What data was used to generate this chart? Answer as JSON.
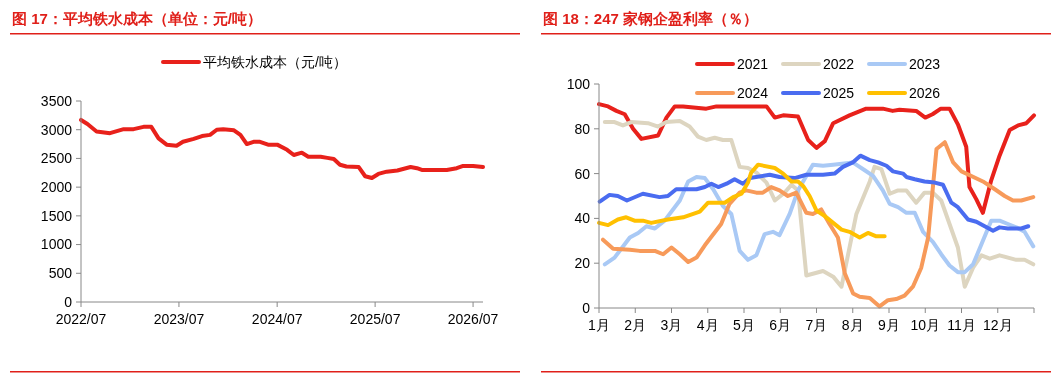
{
  "chart_data": [
    {
      "type": "line",
      "title": "图 17：平均铁水成本（单位：元/吨）",
      "legend": "top",
      "grid": false,
      "marker": "none",
      "line_style": "solid",
      "xlim": [
        "2022-07-01",
        "2026-08-07"
      ],
      "xticks": [
        {
          "value": "2022-07",
          "label": "2022/07"
        },
        {
          "value": "2023-07",
          "label": "2023/07"
        },
        {
          "value": "2024-07",
          "label": "2024/07"
        },
        {
          "value": "2025-07",
          "label": "2025/07"
        },
        {
          "value": "2026-07",
          "label": "2026/07"
        }
      ],
      "ylim": [
        0,
        3500
      ],
      "yticks": [
        0,
        500,
        1000,
        1500,
        2000,
        2500,
        3000,
        3500
      ],
      "series": [
        {
          "name": "平均铁水成本（元/吨）",
          "color": "#e8211b",
          "x": [
            "2022-07-01",
            "2022-07-25",
            "2022-08-28",
            "2022-10-17",
            "2022-12-07",
            "2023-01-13",
            "2023-02-19",
            "2023-03-20",
            "2023-04-16",
            "2023-05-16",
            "2023-06-22",
            "2023-07-16",
            "2023-08-25",
            "2023-09-25",
            "2023-10-25",
            "2023-11-19",
            "2023-12-13",
            "2024-01-22",
            "2024-02-15",
            "2024-03-10",
            "2024-04-04",
            "2024-04-28",
            "2024-05-28",
            "2024-07-01",
            "2024-08-07",
            "2024-09-01",
            "2024-10-01",
            "2024-10-25",
            "2024-12-10",
            "2025-01-04",
            "2025-01-28",
            "2025-02-20",
            "2025-03-16",
            "2025-05-01",
            "2025-05-25",
            "2025-06-19",
            "2025-07-13",
            "2025-08-13",
            "2025-09-22",
            "2025-11-10",
            "2025-12-04",
            "2025-12-22",
            "2026-02-04",
            "2026-03-25",
            "2026-05-01",
            "2026-05-25",
            "2026-07-01",
            "2026-08-07"
          ],
          "values": [
            3170,
            3100,
            2970,
            2940,
            3010,
            3010,
            3050,
            3050,
            2850,
            2740,
            2720,
            2790,
            2840,
            2890,
            2910,
            3000,
            3010,
            2990,
            2910,
            2750,
            2790,
            2790,
            2740,
            2740,
            2650,
            2560,
            2600,
            2530,
            2530,
            2510,
            2490,
            2390,
            2360,
            2350,
            2190,
            2160,
            2230,
            2270,
            2290,
            2350,
            2330,
            2300,
            2300,
            2300,
            2330,
            2370,
            2370,
            2350
          ]
        }
      ]
    },
    {
      "type": "line",
      "title": "图 18：247 家钢企盈利率（％）",
      "legend": "top",
      "grid": false,
      "marker": "none",
      "line_style": "solid",
      "xlim": [
        1,
        13
      ],
      "xticks": [
        {
          "value": 1,
          "label": "1月"
        },
        {
          "value": 2,
          "label": "2月"
        },
        {
          "value": 3,
          "label": "3月"
        },
        {
          "value": 4,
          "label": "4月"
        },
        {
          "value": 5,
          "label": "5月"
        },
        {
          "value": 6,
          "label": "6月"
        },
        {
          "value": 7,
          "label": "7月"
        },
        {
          "value": 8,
          "label": "8月"
        },
        {
          "value": 9,
          "label": "9月"
        },
        {
          "value": 10,
          "label": "10月"
        },
        {
          "value": 11,
          "label": "11月"
        },
        {
          "value": 12,
          "label": "12月"
        },
        {
          "value": 13,
          "label": null
        }
      ],
      "ylim": [
        0,
        100
      ],
      "yticks": [
        0,
        20,
        40,
        60,
        80,
        100
      ],
      "series": [
        {
          "name": "2021",
          "color": "#e8211b",
          "x": [
            1,
            1.25,
            1.48,
            1.71,
            1.94,
            2.17,
            2.63,
            2.86,
            3.09,
            3.32,
            3.96,
            4.24,
            4.88,
            5.62,
            5.85,
            6.08,
            6.49,
            6.77,
            7.0,
            7.23,
            7.46,
            7.91,
            8.37,
            8.83,
            9.1,
            9.29,
            9.75,
            10.0,
            10.2,
            10.43,
            10.67,
            10.9,
            11.13,
            11.22,
            11.41,
            11.59,
            11.82,
            12.05,
            12.33,
            12.56,
            12.79,
            13.0
          ],
          "values": [
            91,
            90,
            88,
            86.5,
            80,
            75.5,
            77,
            85,
            90,
            90,
            89,
            90,
            90,
            90,
            85,
            86,
            85.5,
            75,
            71.5,
            74.5,
            82.5,
            86,
            89,
            89,
            88,
            88.5,
            88,
            85,
            86.5,
            89,
            89,
            82,
            72,
            54,
            48.5,
            42.5,
            57,
            68,
            79.5,
            81.5,
            82.5,
            86
          ]
        },
        {
          "name": "2022",
          "color": "#ddd5c0",
          "x": [
            1.16,
            1.43,
            1.66,
            1.89,
            2.35,
            2.63,
            2.86,
            3.23,
            3.5,
            3.73,
            3.96,
            4.19,
            4.42,
            4.65,
            4.88,
            5.11,
            5.34,
            5.62,
            5.85,
            6.12,
            6.31,
            6.49,
            6.72,
            6.95,
            7.18,
            7.46,
            7.69,
            8.1,
            8.47,
            8.6,
            8.79,
            9.02,
            9.25,
            9.48,
            9.75,
            9.98,
            10.21,
            10.44,
            10.9,
            11.09,
            11.32,
            11.55,
            11.78,
            12.05,
            12.51,
            12.74,
            12.98
          ],
          "values": [
            83,
            83,
            81.5,
            83,
            82.5,
            81,
            83,
            83.5,
            81,
            76.5,
            75,
            76,
            75,
            75,
            63,
            62.5,
            60.5,
            56,
            48,
            51.5,
            55,
            52.5,
            14.5,
            15.5,
            16.5,
            14,
            9.5,
            42,
            56.5,
            63,
            62,
            51,
            52.5,
            52.5,
            47,
            51.5,
            51.5,
            48,
            27,
            9.5,
            18,
            23.5,
            22,
            23.5,
            21.5,
            21.5,
            19.5
          ]
        },
        {
          "name": "2023",
          "color": "#a9c9f5",
          "x": [
            1.16,
            1.43,
            1.85,
            2.08,
            2.31,
            2.54,
            2.81,
            3.23,
            3.46,
            3.69,
            3.92,
            4.15,
            4.42,
            4.65,
            4.88,
            5.11,
            5.34,
            5.57,
            5.8,
            5.98,
            6.26,
            6.49,
            6.63,
            6.9,
            7.18,
            7.46,
            8.0,
            8.33,
            8.56,
            8.83,
            9.02,
            9.25,
            9.48,
            9.71,
            9.94,
            10.21,
            10.44,
            10.67,
            10.9,
            11.09,
            11.32,
            11.59,
            11.82,
            12.05,
            12.28,
            12.51,
            12.74,
            12.98
          ],
          "values": [
            19.5,
            22.5,
            31.5,
            33.5,
            36.5,
            35.5,
            39,
            48,
            56.5,
            58.5,
            58,
            53,
            45.5,
            42,
            25.5,
            21.5,
            23.5,
            33,
            34,
            32.5,
            42,
            52.5,
            56.5,
            64,
            63.5,
            64,
            65,
            61.5,
            59,
            52.5,
            46.5,
            45,
            42.5,
            42.5,
            34,
            29.5,
            24,
            19,
            16,
            16,
            19.5,
            30,
            39,
            39,
            37.5,
            36,
            34,
            27.5
          ]
        },
        {
          "name": "2024",
          "color": "#f79a5a",
          "x": [
            1.11,
            1.39,
            1.85,
            2.12,
            2.54,
            2.77,
            3.0,
            3.23,
            3.46,
            3.69,
            3.92,
            4.37,
            4.6,
            4.88,
            5.06,
            5.34,
            5.52,
            5.75,
            5.98,
            6.21,
            6.44,
            6.72,
            6.9,
            7.13,
            7.36,
            7.59,
            7.78,
            8.01,
            8.19,
            8.47,
            8.74,
            8.97,
            9.2,
            9.43,
            9.66,
            9.89,
            10.08,
            10.31,
            10.54,
            10.77,
            11.0,
            11.46,
            11.59,
            11.92,
            12.19,
            12.42,
            12.65,
            12.98
          ],
          "values": [
            30.5,
            26.5,
            26,
            25.5,
            25.5,
            24,
            27,
            24,
            20.5,
            22.5,
            28,
            37.5,
            46.5,
            51.5,
            52.5,
            51.5,
            51.5,
            54,
            52.5,
            50,
            51.5,
            42.5,
            42,
            44,
            37.5,
            31.5,
            15.5,
            6.5,
            5,
            4.5,
            0.7,
            3.5,
            4,
            5.5,
            9.5,
            18,
            31.5,
            71,
            74,
            65,
            61,
            57.5,
            56.5,
            53,
            50,
            48,
            48,
            49.5
          ]
        },
        {
          "name": "2025",
          "color": "#4a6cf0",
          "x": [
            1.02,
            1.29,
            1.52,
            1.77,
            2.21,
            2.67,
            2.9,
            3.13,
            3.69,
            3.92,
            4.1,
            4.29,
            4.52,
            4.74,
            4.97,
            5.16,
            5.71,
            5.98,
            6.4,
            6.72,
            7.18,
            7.5,
            7.73,
            8.0,
            8.21,
            8.47,
            8.7,
            8.93,
            9.11,
            9.39,
            9.48,
            9.71,
            9.98,
            10.26,
            10.49,
            10.72,
            10.9,
            11.18,
            11.41,
            11.64,
            11.87,
            12.05,
            12.28,
            12.65,
            12.84
          ],
          "values": [
            47.5,
            50.5,
            50,
            48,
            51,
            49.5,
            50,
            53,
            53,
            54,
            55.5,
            54,
            55.5,
            57.5,
            55.5,
            58,
            59.5,
            58.5,
            58,
            59.5,
            59.5,
            60,
            63,
            65,
            68,
            66,
            65,
            63.5,
            61,
            60,
            58.5,
            57.5,
            56.5,
            56,
            55,
            47,
            45,
            39.5,
            38.5,
            36.5,
            34.5,
            36,
            35.5,
            35.5,
            36.5
          ]
        },
        {
          "name": "2026",
          "color": "#ffc000",
          "x": [
            1,
            1.25,
            1.52,
            1.75,
            1.98,
            2.21,
            2.44,
            2.9,
            3.32,
            3.78,
            4.01,
            4.47,
            4.7,
            4.93,
            5.11,
            5.2,
            5.39,
            5.85,
            6.08,
            6.31,
            6.49,
            6.63,
            6.81,
            7.0,
            7.23,
            7.46,
            7.69,
            7.91,
            8.19,
            8.42,
            8.65,
            8.88
          ],
          "values": [
            38,
            37,
            39.5,
            40.5,
            39,
            39,
            38,
            39.5,
            40.5,
            43,
            47,
            47,
            49.5,
            51,
            56,
            60.5,
            64,
            62.5,
            60,
            56.5,
            56.5,
            54.5,
            50,
            43.5,
            41,
            38,
            35,
            34,
            31.5,
            33.5,
            32,
            32
          ]
        }
      ]
    }
  ]
}
